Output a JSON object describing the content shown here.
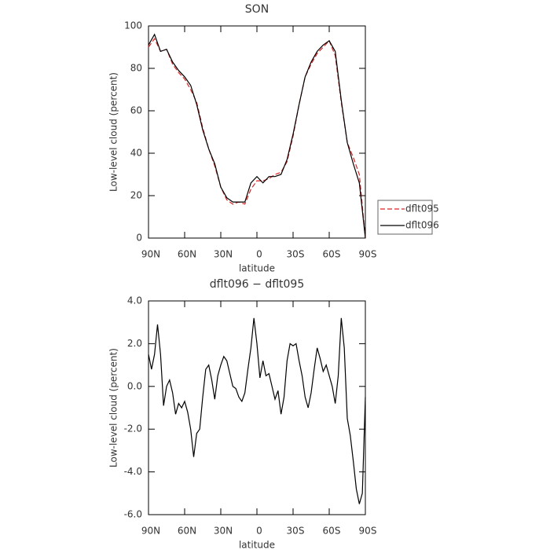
{
  "chart_data": [
    {
      "type": "line",
      "title": "SON",
      "x_label": "latitude",
      "y_label": "Low-level cloud (percent)",
      "x": [
        90,
        85,
        80,
        75,
        70,
        65,
        60,
        55,
        50,
        45,
        40,
        35,
        30,
        25,
        20,
        15,
        10,
        5,
        0,
        -5,
        -10,
        -15,
        -20,
        -25,
        -30,
        -35,
        -40,
        -45,
        -50,
        -55,
        -60,
        -65,
        -70,
        -75,
        -80,
        -85,
        -90
      ],
      "series": [
        {
          "name": "dflt095",
          "color": "#e02020",
          "line_style": "dashed",
          "values": [
            90,
            94,
            88,
            89,
            82,
            78,
            75,
            70,
            64,
            52,
            42,
            34,
            24,
            18,
            16,
            17,
            16,
            23,
            27,
            27,
            28,
            30,
            31,
            36,
            48,
            63,
            76,
            82,
            87,
            90,
            93,
            86,
            64,
            45,
            38,
            30,
            0
          ]
        },
        {
          "name": "dflt096",
          "color": "#000000",
          "line_style": "solid",
          "values": [
            91,
            96,
            88,
            89,
            83,
            79,
            76,
            72,
            63,
            51,
            42,
            35,
            24,
            19,
            17,
            17,
            17,
            26,
            29,
            26,
            29,
            29,
            30,
            37,
            49,
            63,
            76,
            83,
            88,
            91,
            93,
            88,
            65,
            45,
            35,
            26,
            0
          ]
        }
      ],
      "xlim": [
        90,
        -90
      ],
      "xticks": [
        {
          "value": 90,
          "label": "90N"
        },
        {
          "value": 60,
          "label": "60N"
        },
        {
          "value": 30,
          "label": "30N"
        },
        0,
        {
          "value": -30,
          "label": "30S"
        },
        {
          "value": -60,
          "label": "60S"
        },
        {
          "value": -90,
          "label": "90S"
        }
      ],
      "ylim": [
        0,
        100
      ],
      "yticks": [
        0,
        20,
        40,
        60,
        80,
        100
      ],
      "legend": "right"
    },
    {
      "type": "line",
      "title": "dflt096 − dflt095",
      "x_label": "latitude",
      "y_label": "Low-level cloud (percent)",
      "x": [
        90,
        87.5,
        85,
        82.5,
        80,
        77.5,
        75,
        72.5,
        70,
        67.5,
        65,
        62.5,
        60,
        57.5,
        55,
        52.5,
        50,
        47.5,
        45,
        42.5,
        40,
        37.5,
        35,
        32.5,
        30,
        27.5,
        25,
        22.5,
        20,
        17.5,
        15,
        12.5,
        10,
        7.5,
        5,
        2.5,
        0,
        -2.5,
        -5,
        -7.5,
        -10,
        -12.5,
        -15,
        -17.5,
        -20,
        -22.5,
        -25,
        -27.5,
        -30,
        -32.5,
        -35,
        -37.5,
        -40,
        -42.5,
        -45,
        -47.5,
        -50,
        -52.5,
        -55,
        -57.5,
        -60,
        -62.5,
        -65,
        -67.5,
        -70,
        -72.5,
        -75,
        -77.5,
        -80,
        -82.5,
        -85,
        -87.5,
        -90
      ],
      "color": "#000000",
      "values": [
        1.5,
        0.8,
        1.5,
        2.9,
        1.5,
        -0.9,
        0.0,
        0.3,
        -0.3,
        -1.3,
        -0.8,
        -1.0,
        -0.7,
        -1.2,
        -2.0,
        -3.3,
        -2.2,
        -2.0,
        -0.5,
        0.8,
        1.0,
        0.3,
        -0.6,
        0.5,
        1.0,
        1.4,
        1.2,
        0.6,
        0.0,
        -0.1,
        -0.5,
        -0.7,
        -0.3,
        0.8,
        1.8,
        3.2,
        2.0,
        0.4,
        1.2,
        0.5,
        0.6,
        0.0,
        -0.6,
        -0.2,
        -1.3,
        -0.5,
        1.2,
        2.0,
        1.9,
        2.0,
        1.2,
        0.5,
        -0.5,
        -1.0,
        -0.3,
        0.8,
        1.8,
        1.3,
        0.7,
        1.0,
        0.5,
        0.0,
        -0.8,
        0.5,
        3.2,
        1.8,
        -1.5,
        -2.3,
        -3.5,
        -4.8,
        -5.5,
        -5.0,
        -0.5
      ],
      "xlim": [
        90,
        -90
      ],
      "xticks": [
        {
          "value": 90,
          "label": "90N"
        },
        {
          "value": 60,
          "label": "60N"
        },
        {
          "value": 30,
          "label": "30N"
        },
        0,
        {
          "value": -30,
          "label": "30S"
        },
        {
          "value": -60,
          "label": "60S"
        },
        {
          "value": -90,
          "label": "90S"
        }
      ],
      "ylim": [
        -6,
        4
      ],
      "yticks": [
        {
          "value": -6,
          "label": "-6.0"
        },
        {
          "value": -4,
          "label": "-4.0"
        },
        {
          "value": -2,
          "label": "-2.0"
        },
        {
          "value": 0,
          "label": "0.0"
        },
        {
          "value": 2,
          "label": "2.0"
        },
        {
          "value": 4,
          "label": "4.0"
        }
      ]
    }
  ]
}
